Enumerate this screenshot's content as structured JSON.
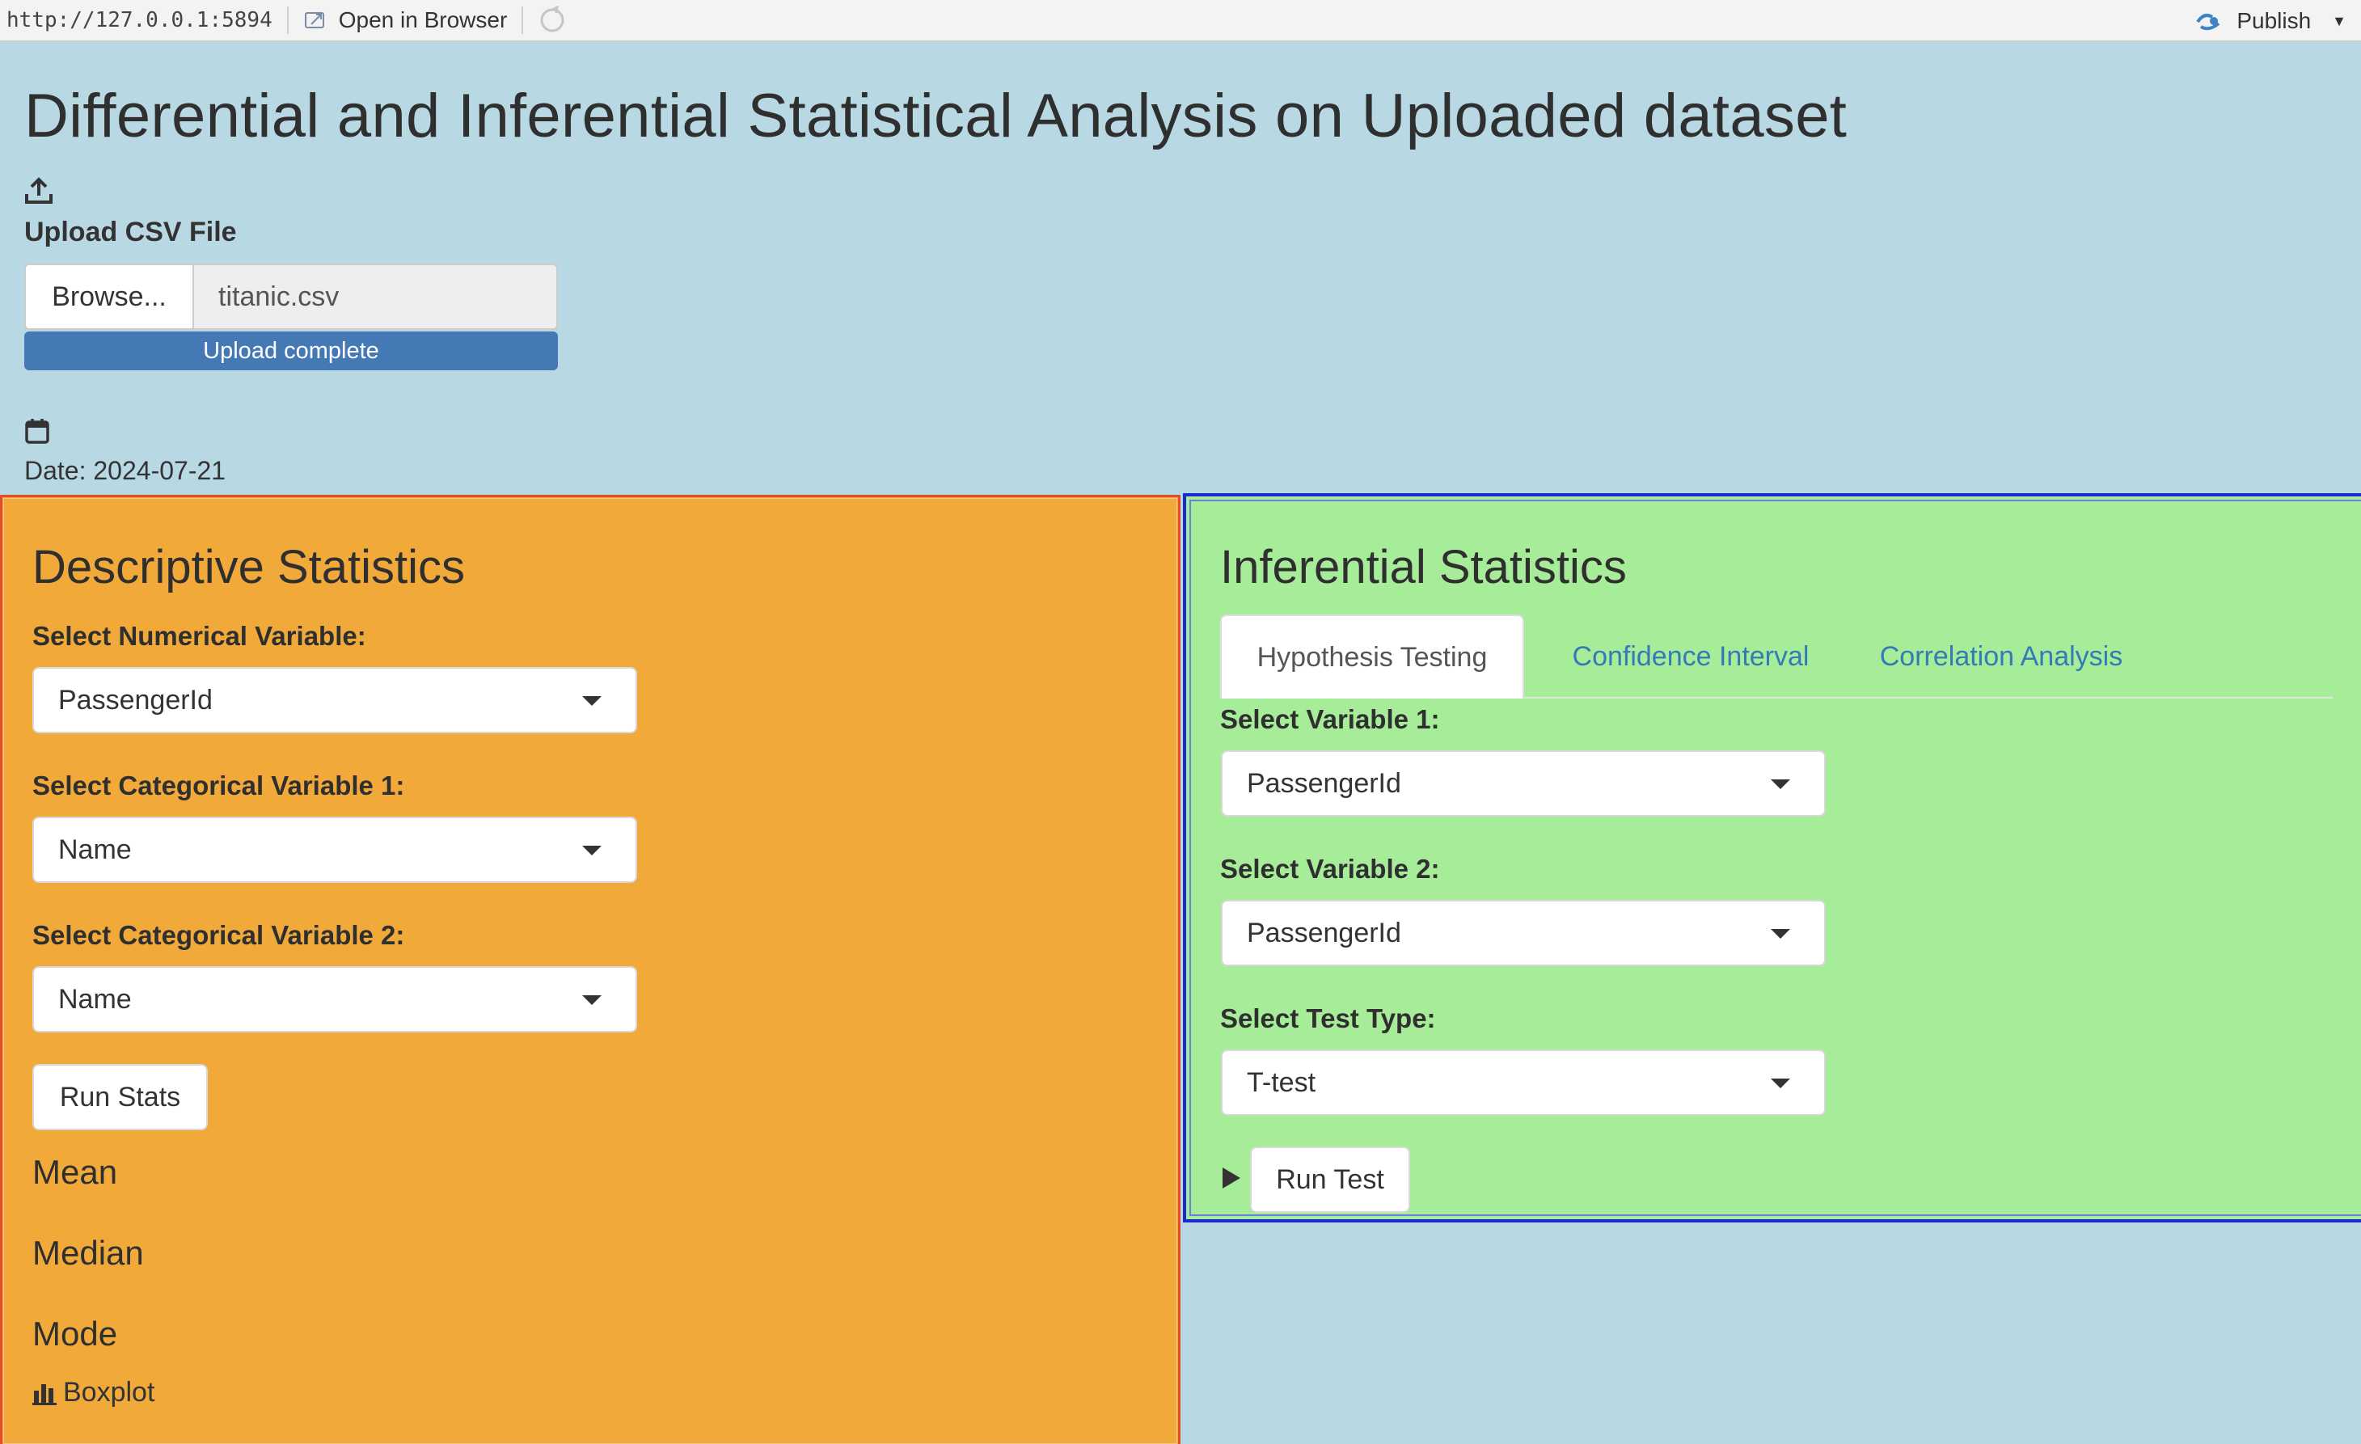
{
  "browser": {
    "url": "http://127.0.0.1:5894",
    "open_in_browser": "Open in Browser",
    "publish": "Publish"
  },
  "page": {
    "title": "Differential and Inferential Statistical Analysis on Uploaded dataset"
  },
  "upload": {
    "label": "Upload CSV File",
    "browse_button": "Browse...",
    "file_name": "titanic.csv",
    "status": "Upload complete",
    "progress_percent": 100
  },
  "date": {
    "text": "Date: 2024-07-21"
  },
  "descriptive": {
    "title": "Descriptive Statistics",
    "numerical_label": "Select Numerical Variable:",
    "numerical_value": "PassengerId",
    "cat1_label": "Select Categorical Variable 1:",
    "cat1_value": "Name",
    "cat2_label": "Select Categorical Variable 2:",
    "cat2_value": "Name",
    "run_button": "Run Stats",
    "mean_heading": "Mean",
    "median_heading": "Median",
    "mode_heading": "Mode",
    "boxplot_label": "Boxplot"
  },
  "inferential": {
    "title": "Inferential Statistics",
    "tabs": [
      {
        "label": "Hypothesis Testing",
        "active": true
      },
      {
        "label": "Confidence Interval",
        "active": false
      },
      {
        "label": "Correlation Analysis",
        "active": false
      }
    ],
    "var1_label": "Select Variable 1:",
    "var1_value": "PassengerId",
    "var2_label": "Select Variable 2:",
    "var2_value": "PassengerId",
    "test_label": "Select Test Type:",
    "test_value": "T-test",
    "run_button": "Run Test"
  },
  "colors": {
    "page_bg": "#b8d8e4",
    "descriptive_bg": "#f1a93a",
    "descriptive_border": "#e54c2c",
    "inferential_bg": "#a7ec98",
    "inferential_border": "#1a2ad0",
    "progress_bar": "#4479b6",
    "tab_link": "#337ab7"
  },
  "icons": [
    "upload-icon",
    "calendar-icon",
    "bar-chart-icon",
    "play-icon",
    "publish-icon",
    "refresh-icon",
    "open-browser-icon"
  ]
}
